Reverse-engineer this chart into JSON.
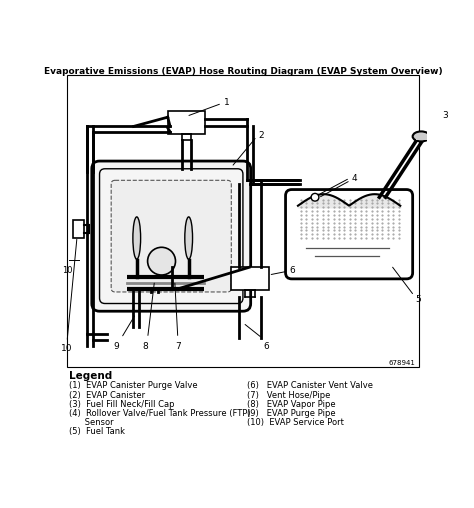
{
  "title": "Evaporative Emissions (EVAP) Hose Routing Diagram (EVAP System Overview)",
  "bg_color": "#ffffff",
  "line_color": "#000000",
  "diagram_number": "678941",
  "legend_title": "Legend",
  "legend_items_left": [
    "(1)  EVAP Canister Purge Valve",
    "(2)  EVAP Canister",
    "(3)  Fuel Fill Neck/Fill Cap",
    "(4)  Rollover Valve/Fuel Tank Pressure (FTP)",
    "      Sensor",
    "(5)  Fuel Tank"
  ],
  "legend_items_right": [
    "(6)   EVAP Canister Vent Valve",
    "(7)   Vent Hose/Pipe",
    "(8)   EVAP Vapor Pipe",
    "(9)   EVAP Purge Pipe",
    "(10)  EVAP Service Port"
  ]
}
